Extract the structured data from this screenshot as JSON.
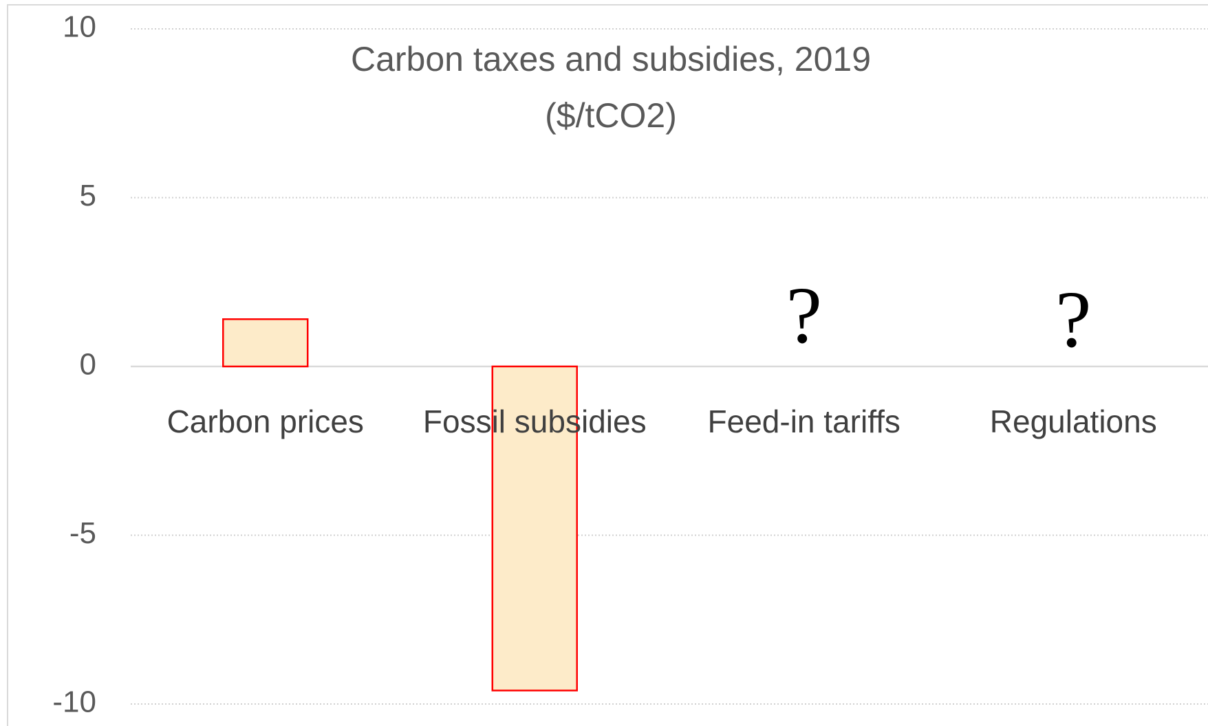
{
  "chart_data": {
    "type": "bar",
    "title": "Carbon taxes and subsidies, 2019",
    "subtitle": "($/tCO2)",
    "categories": [
      "Carbon prices",
      "Fossil subsidies",
      "Feed-in tariffs",
      "Regulations"
    ],
    "values": [
      1.4,
      -9.6,
      null,
      null
    ],
    "color": "#fdebc9",
    "edge_color": "#ff0000",
    "annotations": [
      "?",
      "?"
    ],
    "ylim": [
      -10,
      10
    ],
    "yticks": [
      -10,
      -5,
      0,
      5,
      10
    ],
    "grid": true
  }
}
